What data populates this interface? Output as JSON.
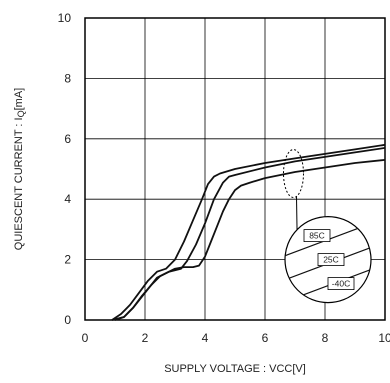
{
  "chart_data": {
    "type": "line",
    "xlabel": "SUPPLY VOLTAGE : VCC[V]",
    "ylabel": "QUIESCENT CURRENT : IQ[mA]",
    "ylabel_main": "QUIESCENT CURRENT : I",
    "ylabel_sub": "Q",
    "ylabel_unit": "[mA]",
    "xlim": [
      0,
      10
    ],
    "ylim": [
      0,
      10
    ],
    "x_ticks": [
      "0",
      "2",
      "4",
      "6",
      "8",
      "10"
    ],
    "y_ticks": [
      "0",
      "2",
      "4",
      "6",
      "8",
      "10"
    ],
    "grid": true,
    "series": [
      {
        "name": "85C",
        "x": [
          0.9,
          1.2,
          1.5,
          1.8,
          2.1,
          2.4,
          2.7,
          3.0,
          3.3,
          3.6,
          3.9,
          4.1,
          4.3,
          4.5,
          5.0,
          6.0,
          7.0,
          8.0,
          9.0,
          10.0
        ],
        "y": [
          0.0,
          0.2,
          0.5,
          0.9,
          1.3,
          1.6,
          1.7,
          2.0,
          2.6,
          3.3,
          4.0,
          4.5,
          4.75,
          4.85,
          5.0,
          5.2,
          5.35,
          5.5,
          5.65,
          5.8
        ]
      },
      {
        "name": "25C",
        "x": [
          1.0,
          1.3,
          1.6,
          1.9,
          2.2,
          2.5,
          2.8,
          3.0,
          3.2,
          3.4,
          3.7,
          4.0,
          4.3,
          4.6,
          4.8,
          5.0,
          6.0,
          7.0,
          8.0,
          9.0,
          10.0
        ],
        "y": [
          0.0,
          0.1,
          0.4,
          0.8,
          1.15,
          1.45,
          1.6,
          1.65,
          1.7,
          1.95,
          2.5,
          3.2,
          4.0,
          4.55,
          4.75,
          4.8,
          5.05,
          5.25,
          5.4,
          5.55,
          5.7
        ]
      },
      {
        "name": "-40C",
        "x": [
          0.9,
          1.3,
          1.6,
          2.0,
          2.4,
          2.8,
          3.0,
          3.3,
          3.6,
          3.8,
          4.0,
          4.2,
          4.4,
          4.6,
          4.8,
          5.0,
          5.2,
          5.5,
          6.0,
          7.0,
          8.0,
          9.0,
          10.0
        ],
        "y": [
          0.0,
          0.1,
          0.4,
          0.9,
          1.4,
          1.6,
          1.7,
          1.75,
          1.75,
          1.8,
          2.1,
          2.6,
          3.1,
          3.6,
          4.0,
          4.3,
          4.45,
          4.55,
          4.7,
          4.9,
          5.05,
          5.2,
          5.3
        ]
      }
    ],
    "annotation_labels": [
      "85C",
      "25C",
      "-40C"
    ]
  }
}
